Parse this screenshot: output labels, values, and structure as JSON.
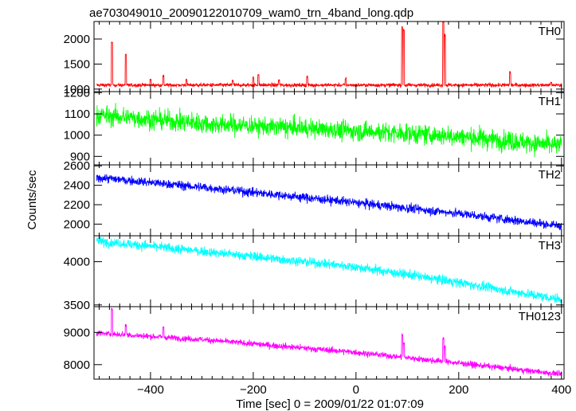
{
  "chart_data": {
    "type": "line",
    "title": "ae703049010_20090122010709_wam0_trn_4band_long.qdp",
    "xlabel": "Time [sec] 0 = 2009/01/22 01:07:09",
    "ylabel": "Counts/sec",
    "xlim": [
      -510,
      405
    ],
    "x_ticks": [
      -400,
      -200,
      0,
      200,
      400
    ],
    "x_tick_labels": [
      "−400",
      "−200",
      "0",
      "200",
      "400"
    ],
    "panels": [
      {
        "name": "TH0",
        "color": "#ff0000",
        "ylim": [
          950,
          2350
        ],
        "y_ticks": [
          1000,
          1500,
          2000
        ],
        "y_tick_labels": [
          "1000",
          "1500",
          "2000"
        ],
        "trend": [
          [
            -505,
            1080
          ],
          [
            400,
            1080
          ]
        ],
        "noise": 30,
        "spikes": [
          [
            -475,
            1950
          ],
          [
            -448,
            1700
          ],
          [
            -400,
            1200
          ],
          [
            -375,
            1280
          ],
          [
            -330,
            1200
          ],
          [
            -240,
            1180
          ],
          [
            -200,
            1250
          ],
          [
            -190,
            1300
          ],
          [
            -150,
            1190
          ],
          [
            -95,
            1270
          ],
          [
            -20,
            1230
          ],
          [
            90,
            2250
          ],
          [
            93,
            2200
          ],
          [
            170,
            2350
          ],
          [
            173,
            2100
          ],
          [
            300,
            1350
          ],
          [
            380,
            1150
          ]
        ]
      },
      {
        "name": "TH1",
        "color": "#00ff00",
        "ylim": [
          860,
          1205
        ],
        "y_ticks": [
          900,
          1000,
          1100,
          1200
        ],
        "y_tick_labels": [
          "900",
          "1000",
          "1100",
          "1200"
        ],
        "trend": [
          [
            -505,
            1095
          ],
          [
            -300,
            1055
          ],
          [
            0,
            1020
          ],
          [
            200,
            995
          ],
          [
            400,
            950
          ]
        ],
        "noise": 38,
        "spikes": []
      },
      {
        "name": "TH2",
        "color": "#0000ff",
        "ylim": [
          1880,
          2610
        ],
        "y_ticks": [
          2000,
          2200,
          2400,
          2600
        ],
        "y_tick_labels": [
          "2000",
          "2200",
          "2400",
          "2600"
        ],
        "trend": [
          [
            -505,
            2480
          ],
          [
            -300,
            2380
          ],
          [
            0,
            2220
          ],
          [
            200,
            2110
          ],
          [
            400,
            1980
          ]
        ],
        "noise": 38,
        "spikes": []
      },
      {
        "name": "TH3",
        "color": "#00ffff",
        "ylim": [
          3480,
          4300
        ],
        "y_ticks": [
          3500,
          4000
        ],
        "y_tick_labels": [
          "3500",
          "4000"
        ],
        "trend": [
          [
            -505,
            4240
          ],
          [
            -300,
            4120
          ],
          [
            0,
            3940
          ],
          [
            200,
            3760
          ],
          [
            400,
            3560
          ]
        ],
        "noise": 45,
        "spikes": []
      },
      {
        "name": "TH0123",
        "color": "#ff00ff",
        "ylim": [
          7550,
          9800
        ],
        "y_ticks": [
          8000,
          9000
        ],
        "y_tick_labels": [
          "8000",
          "9000"
        ],
        "trend": [
          [
            -505,
            8980
          ],
          [
            -300,
            8780
          ],
          [
            0,
            8380
          ],
          [
            200,
            8050
          ],
          [
            400,
            7700
          ]
        ],
        "noise": 75,
        "spikes": [
          [
            -475,
            9750
          ],
          [
            -448,
            9250
          ],
          [
            -375,
            9180
          ],
          [
            90,
            8950
          ],
          [
            93,
            8700
          ],
          [
            170,
            8850
          ],
          [
            173,
            8600
          ]
        ]
      }
    ]
  }
}
